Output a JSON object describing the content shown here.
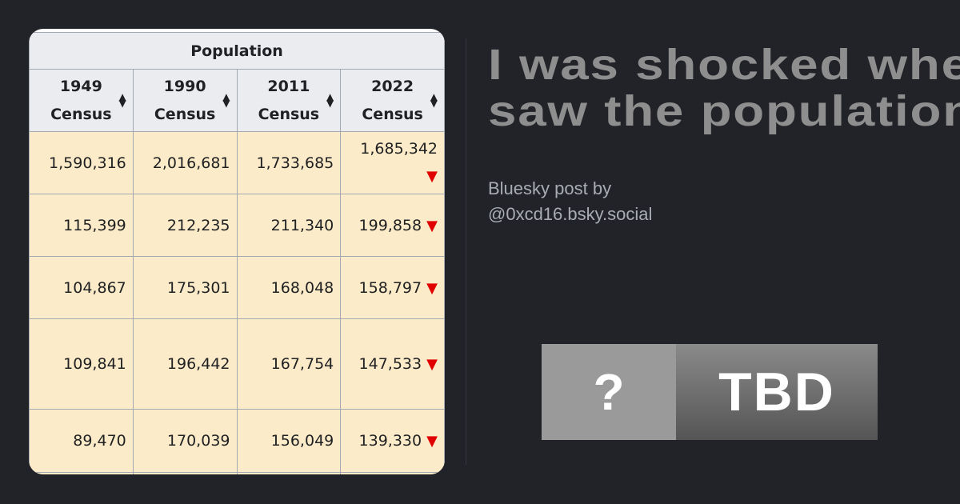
{
  "table": {
    "group_header": "Population",
    "columns": [
      {
        "year": "1949",
        "label": "Census"
      },
      {
        "year": "1990",
        "label": "Census"
      },
      {
        "year": "2011",
        "label": "Census"
      },
      {
        "year": "2022",
        "label": "Census"
      }
    ],
    "rows": [
      [
        "1,590,316",
        "2,016,681",
        "1,733,685",
        "1,685,342"
      ],
      [
        "115,399",
        "212,235",
        "211,340",
        "199,858"
      ],
      [
        "104,867",
        "175,301",
        "168,048",
        "158,797"
      ],
      [
        "109,841",
        "196,442",
        "167,754",
        "147,533"
      ],
      [
        "89,470",
        "170,039",
        "156,049",
        "139,330"
      ]
    ],
    "trend_icon": "red-down-triangle",
    "trend_color": "#e00000"
  },
  "post": {
    "title_line1": "I was shocked whe",
    "title_line2": "saw the population",
    "byline1": "Bluesky post by",
    "byline2": "@0xcd16.bsky.social"
  },
  "badge": {
    "left": "?",
    "right": "TBD"
  }
}
